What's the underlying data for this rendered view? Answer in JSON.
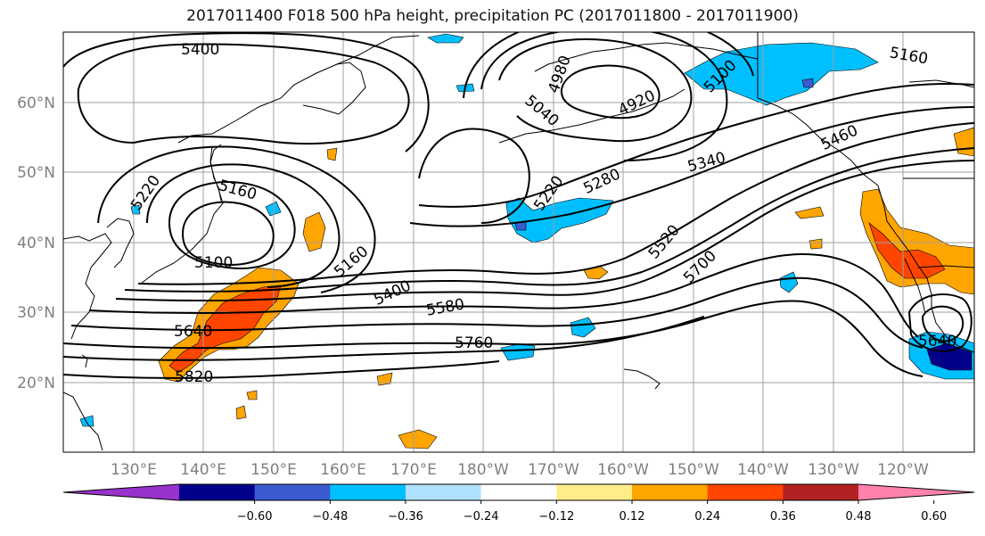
{
  "title": "2017011400 F018 500 hPa height, precipitation PC (2017011800 - 2017011900)",
  "lat_labels": [
    "60°N",
    "50°N",
    "40°N",
    "30°N",
    "20°N"
  ],
  "lon_labels": [
    "130°E",
    "140°E",
    "150°E",
    "160°E",
    "170°E",
    "180°W",
    "170°W",
    "160°W",
    "150°W",
    "140°W",
    "130°W",
    "120°W"
  ],
  "contour_labels": [
    "5400",
    "4980",
    "4920",
    "5040",
    "5100",
    "5160",
    "5220",
    "5160",
    "5100",
    "5160",
    "5220",
    "5280",
    "5340",
    "5460",
    "5400",
    "5520",
    "5580",
    "5700",
    "5640",
    "5760",
    "5820",
    "5640"
  ],
  "colorbar": {
    "colors": [
      "#9932cc",
      "#00008b",
      "#3a5bd0",
      "#00bfff",
      "#b0e2ff",
      "#ffffff",
      "#ffed8a",
      "#ffa500",
      "#ff4500",
      "#b22222",
      "#ff82ab"
    ],
    "tick_labels": [
      "−0.60",
      "−0.48",
      "−0.36",
      "−0.24",
      "−0.12",
      "0.12",
      "0.24",
      "0.36",
      "0.48",
      "0.60"
    ]
  },
  "colors": {
    "coast": "#000000",
    "grid": "#a0a0a0",
    "contour": "#000000"
  }
}
